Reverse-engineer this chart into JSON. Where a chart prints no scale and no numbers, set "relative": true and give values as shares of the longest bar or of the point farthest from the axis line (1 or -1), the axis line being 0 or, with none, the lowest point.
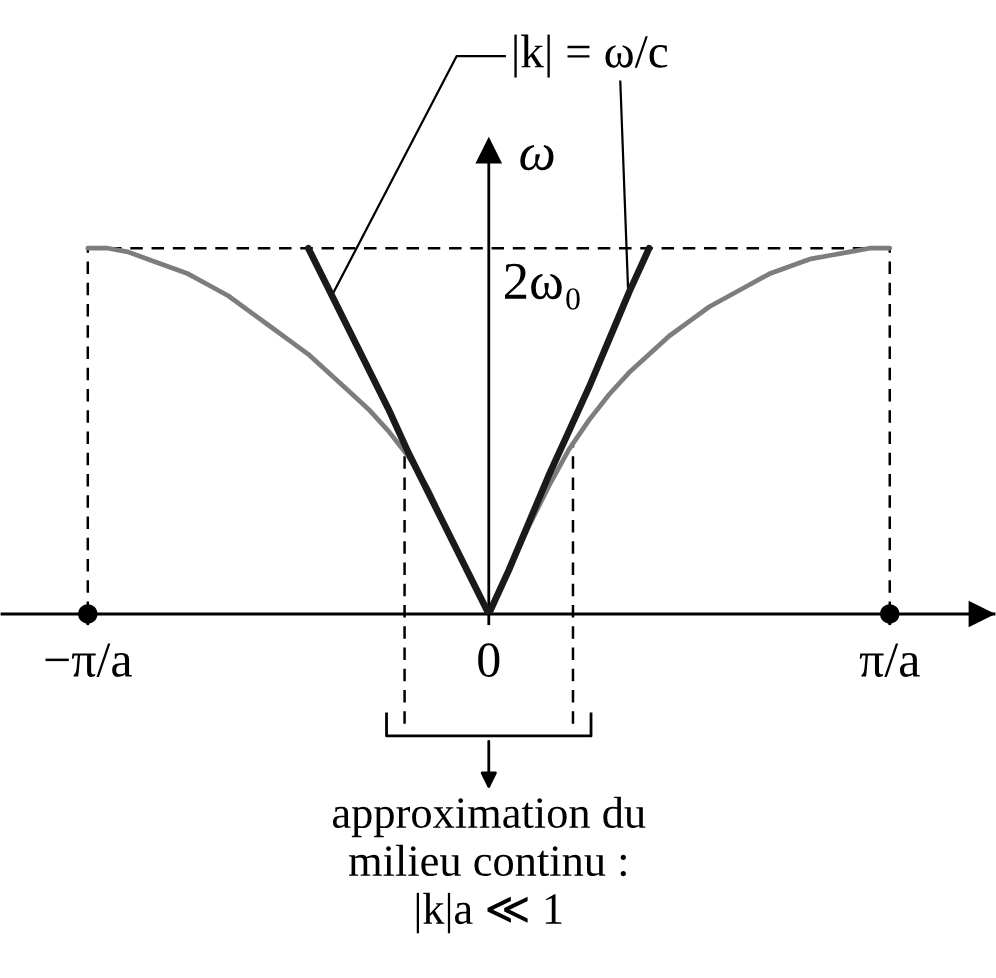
{
  "chart_data": {
    "type": "line",
    "relative": true,
    "categories": [
      "−π/a",
      null,
      null,
      null,
      null,
      null,
      null,
      null,
      null,
      null,
      null,
      null,
      null,
      null,
      null,
      null,
      null,
      null,
      null,
      null,
      "0",
      null,
      null,
      null,
      null,
      null,
      null,
      null,
      null,
      null,
      null,
      null,
      null,
      null,
      null,
      null,
      null,
      null,
      null,
      null,
      "π/a"
    ],
    "ylabel": "ω",
    "series": [
      {
        "color": "#7d7d7d",
        "values": [
          1.0,
          1.0,
          0.99,
          0.97,
          0.95,
          0.93,
          0.9,
          0.87,
          0.83,
          0.79,
          0.75,
          0.71,
          0.66,
          0.61,
          0.56,
          0.5,
          0.43,
          0.34,
          0.22,
          0.11,
          0,
          0.12,
          0.24,
          0.35,
          0.45,
          0.53,
          0.6,
          0.66,
          0.71,
          0.76,
          0.8,
          0.84,
          0.87,
          0.9,
          0.93,
          0.95,
          0.97,
          0.98,
          0.99,
          1.0,
          1.0
        ]
      },
      {
        "name": "|k| = ω/c",
        "color": "#1a1a1a",
        "values": [
          null,
          null,
          null,
          null,
          null,
          null,
          null,
          null,
          null,
          null,
          null,
          1.0,
          0.89,
          0.78,
          0.67,
          0.56,
          0.44,
          0.33,
          0.22,
          0.11,
          0,
          0.12,
          0.25,
          0.38,
          0.5,
          0.62,
          0.75,
          0.88,
          1.0,
          null,
          null,
          null,
          null,
          null,
          null,
          null,
          null,
          null,
          null,
          null,
          null
        ]
      },
      {
        "type": "scatter",
        "marker": "circle",
        "color": "#000000",
        "values": [
          0,
          null,
          null,
          null,
          null,
          null,
          null,
          null,
          null,
          null,
          null,
          null,
          null,
          null,
          null,
          null,
          null,
          null,
          null,
          null,
          null,
          null,
          null,
          null,
          null,
          null,
          null,
          null,
          null,
          null,
          null,
          null,
          null,
          null,
          null,
          null,
          null,
          null,
          null,
          null,
          0
        ]
      }
    ],
    "ref_lines": [
      {
        "axis": "y",
        "value": 1,
        "label": "2ω₀",
        "line_style": "dashed",
        "color": "#000000"
      },
      {
        "axis": "x",
        "value": "−π/a",
        "line_style": "dashed",
        "color": "#000000"
      },
      {
        "axis": "x",
        "value": "π/a",
        "line_style": "dashed",
        "color": "#000000"
      }
    ],
    "annotations": [
      "approximation du\nmilieu continu :\n|k|a ≪ 1"
    ]
  }
}
